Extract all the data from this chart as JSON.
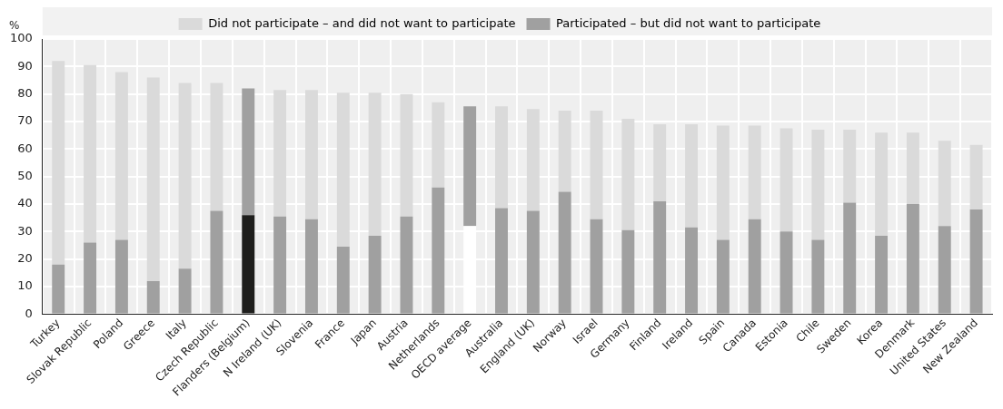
{
  "chart_data": {
    "type": "bar",
    "stacked": true,
    "ylabel": "%",
    "legend": "top",
    "grid": true,
    "ylim": [
      0,
      100
    ],
    "yticks": [
      0,
      10,
      20,
      30,
      40,
      50,
      60,
      70,
      80,
      90,
      100
    ],
    "categories": [
      "Turkey",
      "Slovak Republic",
      "Poland",
      "Greece",
      "Italy",
      "Czech Republic",
      "Flanders (Belgium)",
      "N Ireland (UK)",
      "Slovenia",
      "France",
      "Japan",
      "Austria",
      "Netherlands",
      "OECD average",
      "Australia",
      "England (UK)",
      "Norway",
      "Israel",
      "Germany",
      "Finland",
      "Ireland",
      "Spain",
      "Canada",
      "Estonia",
      "Chile",
      "Sweden",
      "Korea",
      "Denmark",
      "United States",
      "New Zealand"
    ],
    "series": [
      {
        "name": "Participated – but did not want to participate",
        "color": "#a0a0a0",
        "colors": [
          "#a0a0a0",
          "#a0a0a0",
          "#a0a0a0",
          "#a0a0a0",
          "#a0a0a0",
          "#a0a0a0",
          "#1e1e1c",
          "#a0a0a0",
          "#a0a0a0",
          "#a0a0a0",
          "#a0a0a0",
          "#a0a0a0",
          "#a0a0a0",
          "#ffffff",
          "#a0a0a0",
          "#a0a0a0",
          "#a0a0a0",
          "#a0a0a0",
          "#a0a0a0",
          "#a0a0a0",
          "#a0a0a0",
          "#a0a0a0",
          "#a0a0a0",
          "#a0a0a0",
          "#a0a0a0",
          "#a0a0a0",
          "#a0a0a0",
          "#a0a0a0",
          "#a0a0a0",
          "#a0a0a0"
        ],
        "values": [
          18,
          26,
          27,
          12,
          16.5,
          37.5,
          36,
          35.5,
          34.5,
          24.5,
          28.5,
          35.5,
          46,
          32,
          38.5,
          37.5,
          44.5,
          34.5,
          30.5,
          41,
          31.5,
          27,
          34.5,
          30,
          27,
          40.5,
          28.5,
          40,
          32,
          38
        ]
      },
      {
        "name": "Did not participate – and did not want to participate",
        "color": "#dadada",
        "colors": [
          "#dadada",
          "#dadada",
          "#dadada",
          "#dadada",
          "#dadada",
          "#dadada",
          "#a0a0a0",
          "#dadada",
          "#dadada",
          "#dadada",
          "#dadada",
          "#dadada",
          "#dadada",
          "#a0a0a0",
          "#dadada",
          "#dadada",
          "#dadada",
          "#dadada",
          "#dadada",
          "#dadada",
          "#dadada",
          "#dadada",
          "#dadada",
          "#dadada",
          "#dadada",
          "#dadada",
          "#dadada",
          "#dadada",
          "#dadada",
          "#dadada"
        ],
        "values": [
          74,
          64.5,
          61,
          74,
          67.5,
          46.5,
          46,
          46,
          47,
          56,
          52,
          44.5,
          31,
          43.5,
          37,
          37,
          29.5,
          39.5,
          40.5,
          28,
          37.5,
          41.5,
          34,
          37.5,
          40,
          26.5,
          37.5,
          26,
          31,
          23.5
        ]
      }
    ]
  }
}
